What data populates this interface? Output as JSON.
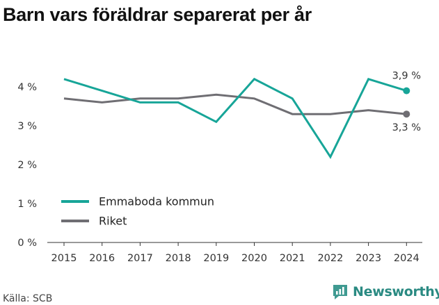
{
  "page": {
    "title": "Barn vars föräldrar separerat per år",
    "source": "Källa: SCB",
    "brand": "Newsworthy"
  },
  "chart_data": {
    "type": "line",
    "title": "Barn vars föräldrar separerat per år",
    "x": [
      "2015",
      "2016",
      "2017",
      "2018",
      "2019",
      "2020",
      "2021",
      "2022",
      "2023",
      "2024"
    ],
    "ylim": [
      0,
      4
    ],
    "yticks": [
      0,
      1,
      2,
      3,
      4
    ],
    "ytick_labels": [
      "0 %",
      "1 %",
      "2 %",
      "3 %",
      "4 %"
    ],
    "grid": false,
    "legend_position": "bottom-left",
    "series": [
      {
        "name": "Emmaboda kommun",
        "color": "#17a598",
        "values": [
          4.2,
          3.9,
          3.6,
          3.6,
          3.1,
          4.2,
          3.7,
          2.2,
          4.2,
          3.9
        ],
        "end_label": "3,9 %"
      },
      {
        "name": "Riket",
        "color": "#6f6e73",
        "values": [
          3.7,
          3.6,
          3.7,
          3.7,
          3.8,
          3.7,
          3.3,
          3.3,
          3.4,
          3.3
        ],
        "end_label": "3,3 %"
      }
    ]
  }
}
